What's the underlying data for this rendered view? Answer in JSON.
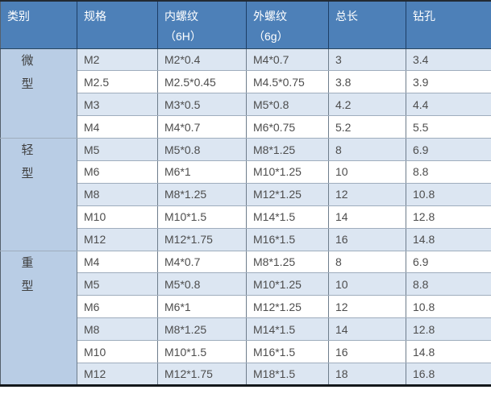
{
  "colors": {
    "header_bg": "#4d80b8",
    "header_text": "#ffffff",
    "category_bg": "#b9cde5",
    "stripe_bg": "#dce6f2",
    "row_bg": "#ffffff",
    "body_text": "#4d4d4d"
  },
  "table": {
    "headers": [
      {
        "label": "类别",
        "sub": ""
      },
      {
        "label": "规格",
        "sub": ""
      },
      {
        "label": "内螺纹",
        "sub": "（6H）"
      },
      {
        "label": "外螺纹",
        "sub": "（6g）"
      },
      {
        "label": "总长",
        "sub": ""
      },
      {
        "label": "钻孔",
        "sub": ""
      }
    ],
    "groups": [
      {
        "category": "微型",
        "rows": [
          [
            "M2",
            "M2*0.4",
            "M4*0.7",
            "3",
            "3.4"
          ],
          [
            "M2.5",
            "M2.5*0.45",
            "M4.5*0.75",
            "3.8",
            "3.9"
          ],
          [
            "M3",
            "M3*0.5",
            "M5*0.8",
            "4.2",
            "4.4"
          ],
          [
            "M4",
            "M4*0.7",
            "M6*0.75",
            "5.2",
            "5.5"
          ]
        ]
      },
      {
        "category": "轻型",
        "rows": [
          [
            "M5",
            "M5*0.8",
            "M8*1.25",
            "8",
            "6.9"
          ],
          [
            "M6",
            "M6*1",
            "M10*1.25",
            "10",
            "8.8"
          ],
          [
            "M8",
            "M8*1.25",
            "M12*1.25",
            "12",
            "10.8"
          ],
          [
            "M10",
            "M10*1.5",
            "M14*1.5",
            "14",
            "12.8"
          ],
          [
            "M12",
            "M12*1.75",
            "M16*1.5",
            "16",
            "14.8"
          ]
        ]
      },
      {
        "category": "重型",
        "rows": [
          [
            "M4",
            "M4*0.7",
            "M8*1.25",
            "8",
            "6.9"
          ],
          [
            "M5",
            "M5*0.8",
            "M10*1.25",
            "10",
            "8.8"
          ],
          [
            "M6",
            "M6*1",
            "M12*1.25",
            "12",
            "10.8"
          ],
          [
            "M8",
            "M8*1.25",
            "M14*1.5",
            "14",
            "12.8"
          ],
          [
            "M10",
            "M10*1.5",
            "M16*1.5",
            "16",
            "14.8"
          ],
          [
            "M12",
            "M12*1.75",
            "M18*1.5",
            "18",
            "16.8"
          ]
        ]
      }
    ]
  }
}
